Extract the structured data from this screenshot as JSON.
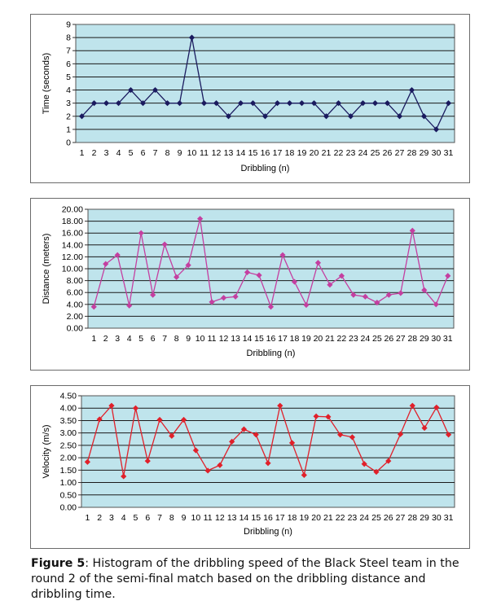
{
  "chart_data": [
    {
      "type": "line",
      "xlabel": "Dribbling (n)",
      "ylabel": "Time (seconds)",
      "ylim": [
        0,
        9
      ],
      "yticks": [
        "0",
        "1",
        "2",
        "3",
        "4",
        "5",
        "6",
        "7",
        "8",
        "9"
      ],
      "categories": [
        "1",
        "2",
        "3",
        "4",
        "5",
        "6",
        "7",
        "8",
        "9",
        "10",
        "11",
        "12",
        "13",
        "14",
        "15",
        "16",
        "17",
        "18",
        "19",
        "20",
        "21",
        "22",
        "23",
        "24",
        "25",
        "26",
        "27",
        "28",
        "29",
        "30",
        "31"
      ],
      "values": [
        2,
        3,
        3,
        3,
        4,
        3,
        4,
        3,
        3,
        8,
        3,
        3,
        2,
        3,
        3,
        2,
        3,
        3,
        3,
        3,
        2,
        3,
        2,
        3,
        3,
        3,
        2,
        4,
        2,
        1,
        3
      ],
      "grid": true,
      "plot_bg": "#bfe4ec",
      "line_color": "#1a1a5e",
      "marker": "diamond"
    },
    {
      "type": "line",
      "xlabel": "Dribbling (n)",
      "ylabel": "Distance (meters)",
      "ylim": [
        0,
        20
      ],
      "yticks": [
        "0.00",
        "2.00",
        "4.00",
        "6.00",
        "8.00",
        "10.00",
        "12.00",
        "14.00",
        "16.00",
        "18.00",
        "20.00"
      ],
      "categories": [
        "1",
        "2",
        "3",
        "4",
        "5",
        "6",
        "7",
        "8",
        "9",
        "10",
        "11",
        "12",
        "13",
        "14",
        "15",
        "16",
        "17",
        "18",
        "19",
        "20",
        "21",
        "22",
        "23",
        "24",
        "25",
        "26",
        "27",
        "28",
        "29",
        "30",
        "31"
      ],
      "values": [
        3.6,
        10.8,
        12.3,
        3.8,
        16.0,
        5.6,
        14.1,
        8.6,
        10.6,
        18.4,
        4.4,
        5.1,
        5.3,
        9.4,
        8.9,
        3.6,
        12.3,
        7.8,
        3.9,
        11.0,
        7.3,
        8.8,
        5.6,
        5.3,
        4.3,
        5.6,
        5.9,
        16.4,
        6.4,
        4.0,
        8.8
      ],
      "grid": true,
      "plot_bg": "#bfe4ec",
      "line_color": "#c43fa0",
      "marker": "diamond"
    },
    {
      "type": "line",
      "xlabel": "Dribbling (n)",
      "ylabel": "Velocity (m/s)",
      "ylim": [
        0,
        4.5
      ],
      "yticks": [
        "0.00",
        "0.50",
        "1.00",
        "1.50",
        "2.00",
        "2.50",
        "3.00",
        "3.50",
        "4.00",
        "4.50"
      ],
      "categories": [
        "1",
        "2",
        "3",
        "4",
        "5",
        "6",
        "7",
        "8",
        "9",
        "10",
        "11",
        "12",
        "13",
        "14",
        "15",
        "16",
        "17",
        "18",
        "19",
        "20",
        "21",
        "22",
        "23",
        "24",
        "25",
        "26",
        "27",
        "28",
        "29",
        "30",
        "31"
      ],
      "values": [
        1.83,
        3.55,
        4.1,
        1.25,
        4.0,
        1.87,
        3.53,
        2.88,
        3.53,
        2.3,
        1.48,
        1.7,
        2.65,
        3.15,
        2.93,
        1.78,
        4.1,
        2.6,
        1.3,
        3.67,
        3.65,
        2.93,
        2.83,
        1.75,
        1.43,
        1.87,
        2.95,
        4.1,
        3.2,
        4.03,
        2.93
      ],
      "grid": true,
      "plot_bg": "#bfe4ec",
      "line_color": "#e0202a",
      "marker": "diamond"
    }
  ],
  "caption": {
    "label": "Figure 5",
    "text": ": Histogram of the dribbling speed of the Black Steel team in the round 2 of the semi-final match based on the dribbling distance and dribbling time."
  }
}
